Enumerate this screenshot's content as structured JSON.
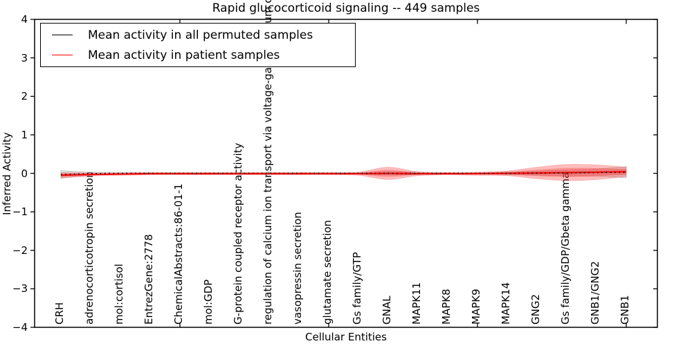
{
  "title": "Rapid glucocorticoid signaling -- 449 samples",
  "chart_data": {
    "type": "line",
    "title": "Rapid glucocorticoid signaling -- 449 samples",
    "xlabel": "Cellular Entities",
    "ylabel": "Inferred Activity",
    "ylim": [
      -4,
      4
    ],
    "ytick_labels": [
      "4",
      "3",
      "2",
      "1",
      "0",
      "−1",
      "−2",
      "−3",
      "−4"
    ],
    "grid": false,
    "legend_position": "upper left",
    "categories": [
      "CRH",
      "adrenocorticotropin secretion",
      "mol:cortisol",
      "EntrezGene:2778",
      "ChemicalAbstracts:86-01-1",
      "mol:GDP",
      "G-protein coupled receptor activity",
      "regulation of calcium ion transport via voltage-gated calcium channels",
      "vasopressin secretion",
      "glutamate secretion",
      "Gs family/GTP",
      "GNAL",
      "MAPK11",
      "MAPK8",
      "MAPK9",
      "MAPK14",
      "GNG2",
      "Gs family/GDP/Gbeta gamma",
      "GNB1/GNG2",
      "GNB1"
    ],
    "series": [
      {
        "name": "Mean activity in all permuted samples",
        "color": "#000000",
        "line_style": "dotted",
        "band_color": "#909090",
        "values": [
          -0.03,
          -0.01,
          0,
          0,
          0,
          0,
          0,
          0,
          0,
          0,
          0,
          0,
          0,
          0,
          0,
          0,
          0.005,
          0.01,
          0.02,
          0.03
        ],
        "band_halfwidth": [
          0.1,
          0.04,
          0.025,
          0.02,
          0.02,
          0.02,
          0.02,
          0.02,
          0.02,
          0.02,
          0.02,
          0.04,
          0.03,
          0.02,
          0.02,
          0.03,
          0.05,
          0.07,
          0.09,
          0.145
        ]
      },
      {
        "name": "Mean activity in patient samples",
        "color": "#ff0000",
        "line_style": "solid",
        "band_color": "#ff2222",
        "values": [
          -0.05,
          -0.03,
          -0.02,
          -0.01,
          -0.01,
          -0.01,
          -0.01,
          -0.01,
          -0.01,
          -0.01,
          -0.01,
          0,
          -0.01,
          -0.01,
          -0.01,
          0,
          0.01,
          0.02,
          0.03,
          0.04
        ],
        "band_halfwidth": [
          0.065,
          0.04,
          0.03,
          0.03,
          0.03,
          0.03,
          0.03,
          0.03,
          0.03,
          0.03,
          0.04,
          0.16,
          0.05,
          0.03,
          0.04,
          0.06,
          0.15,
          0.21,
          0.19,
          0.12
        ]
      }
    ]
  }
}
